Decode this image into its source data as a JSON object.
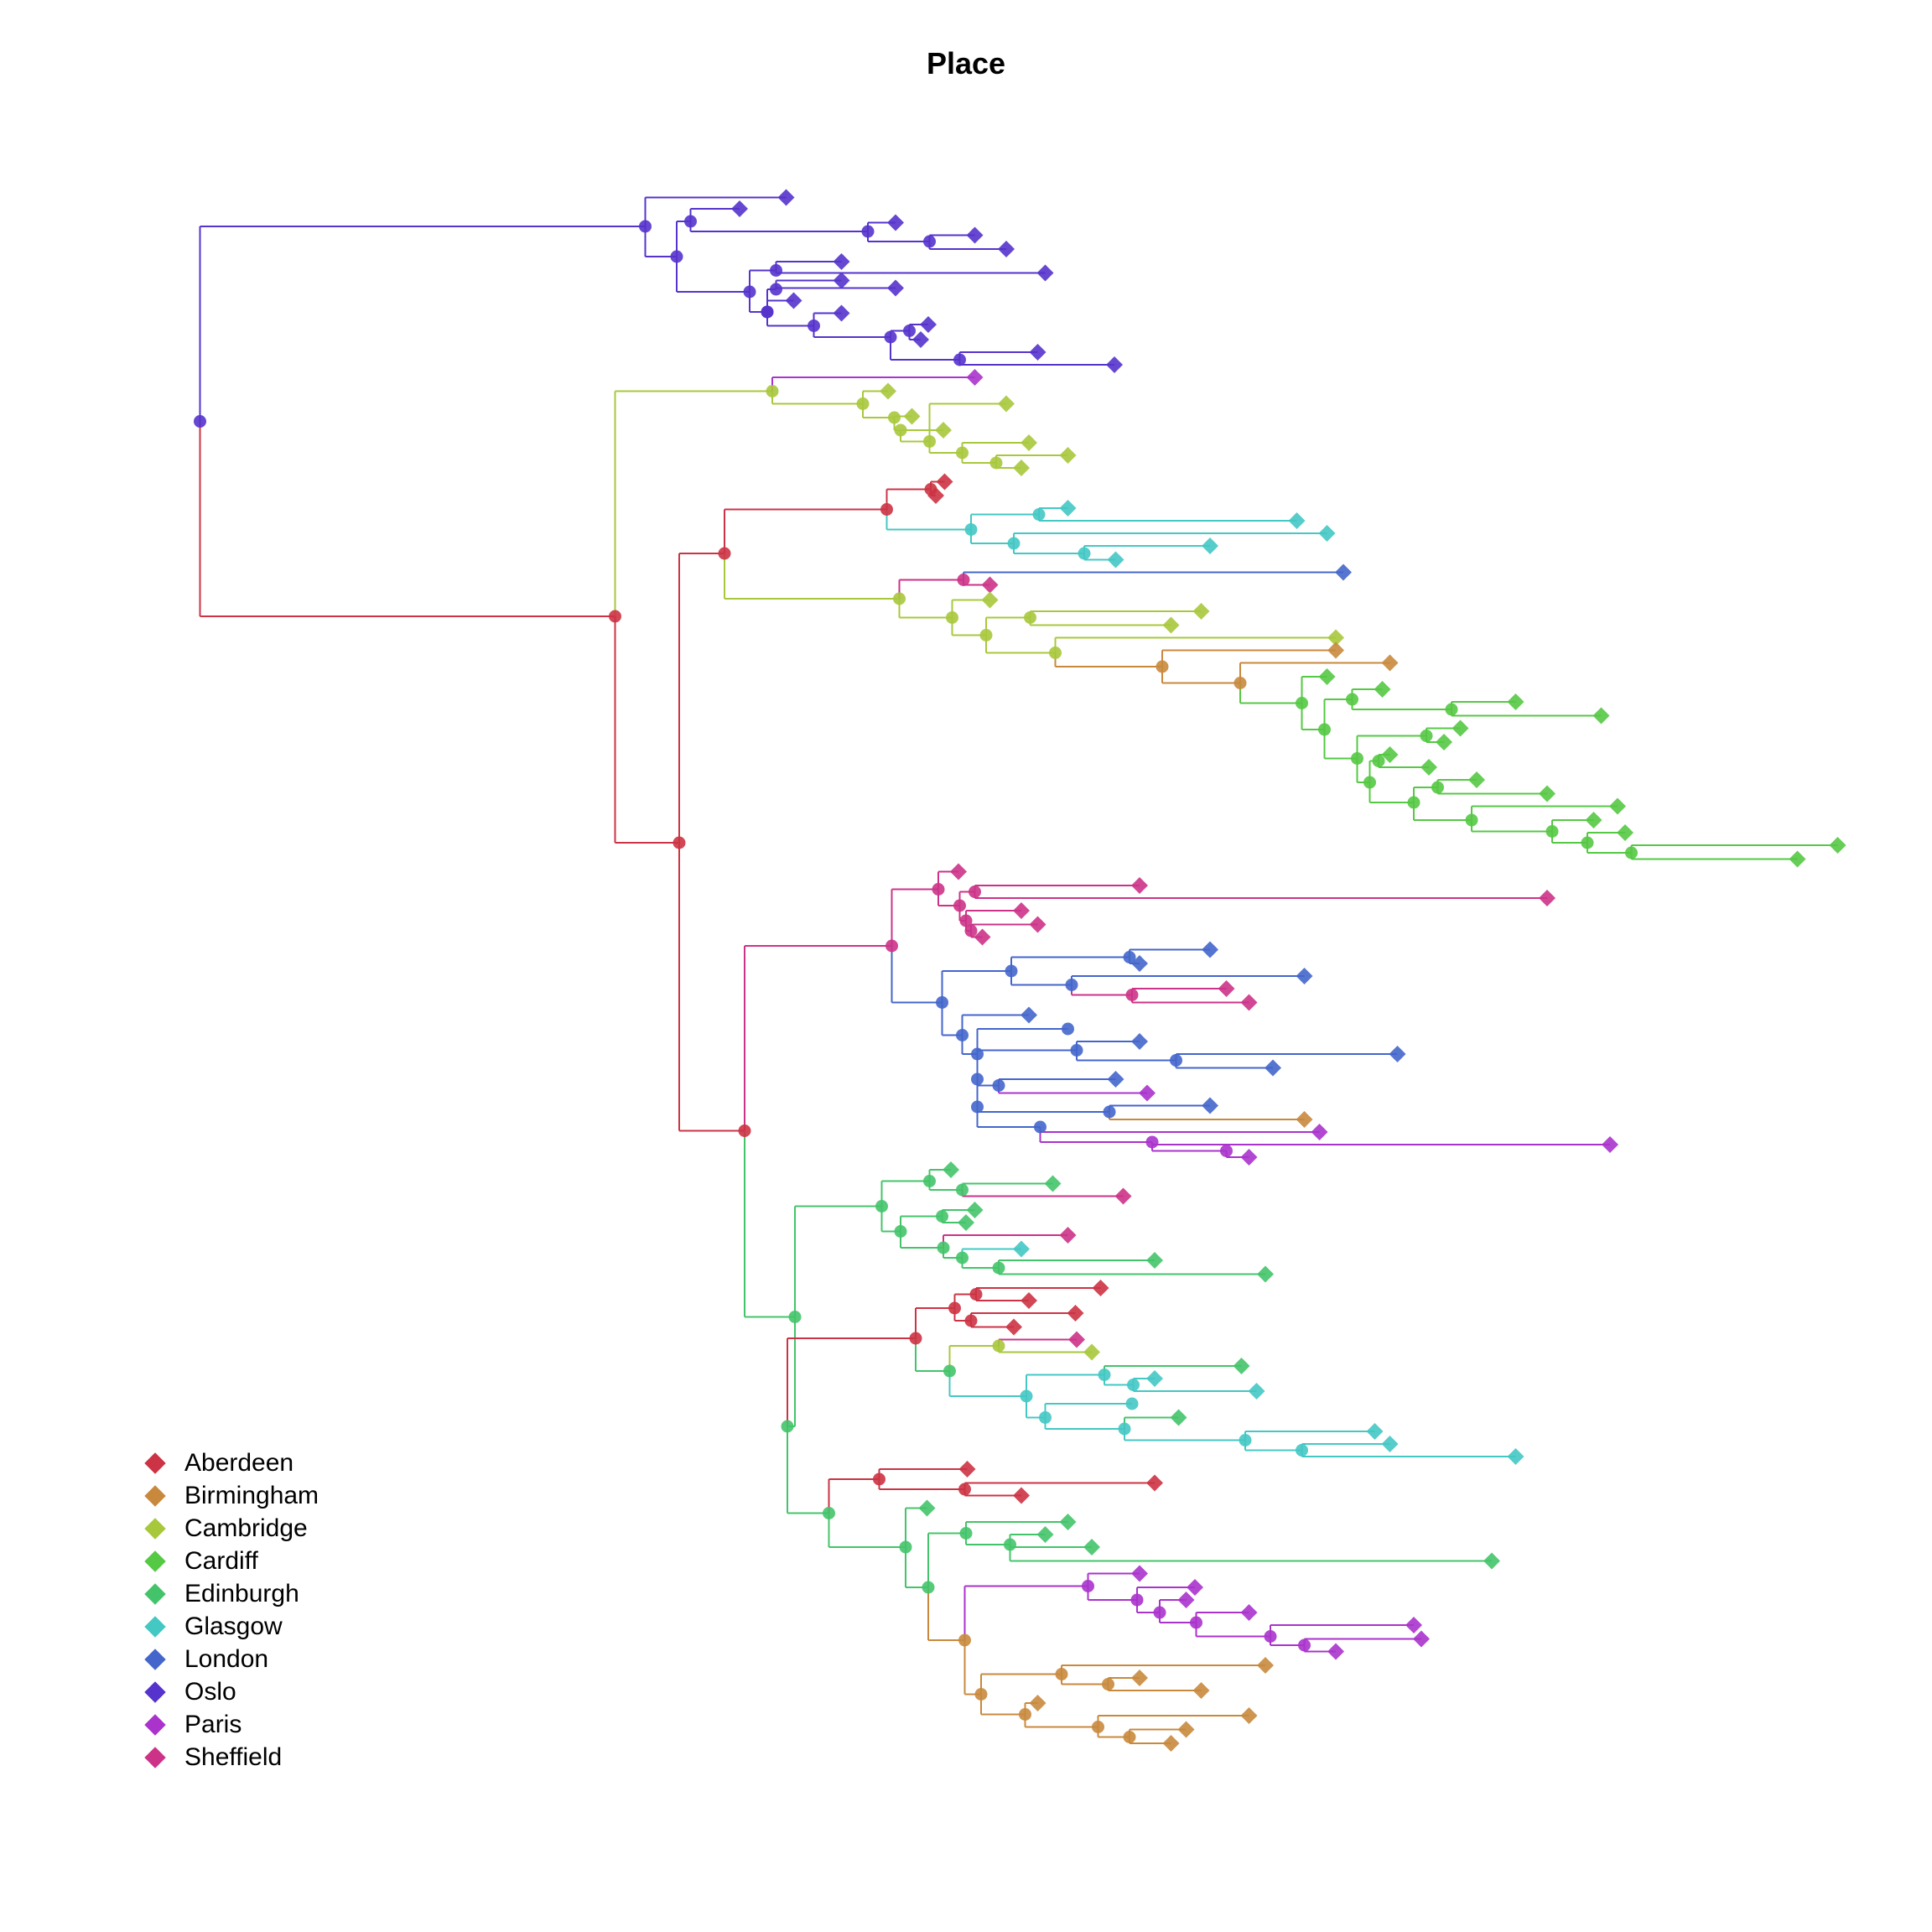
{
  "title": "Place",
  "legend": [
    {
      "label": "Aberdeen",
      "color": "#cc3344"
    },
    {
      "label": "Birmingham",
      "color": "#c8893d"
    },
    {
      "label": "Cambridge",
      "color": "#a8c83c"
    },
    {
      "label": "Cardiff",
      "color": "#55c844"
    },
    {
      "label": "Edinburgh",
      "color": "#44c46a"
    },
    {
      "label": "Glasgow",
      "color": "#44c8c4"
    },
    {
      "label": "London",
      "color": "#4466cc"
    },
    {
      "label": "Oslo",
      "color": "#5533cc"
    },
    {
      "label": "Paris",
      "color": "#aa33cc"
    },
    {
      "label": "Sheffield",
      "color": "#cc3388"
    }
  ]
}
